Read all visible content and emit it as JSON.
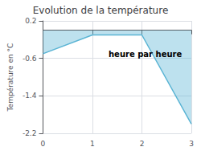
{
  "chart_data": {
    "type": "line",
    "title": "Evolution de la température",
    "ylabel": "Température en °C",
    "annotation": "heure par heure",
    "x": [
      0,
      1,
      2,
      3
    ],
    "values": [
      -0.5,
      -0.1,
      -0.1,
      -2.0
    ],
    "color": "#5ab4d4",
    "xlim": [
      0,
      3
    ],
    "ylim": [
      -2.2,
      0.2
    ],
    "xticks": [
      0,
      1,
      2,
      3
    ],
    "yticks": [
      0.2,
      -0.6,
      -1.4,
      -2.2
    ],
    "grid": true
  }
}
